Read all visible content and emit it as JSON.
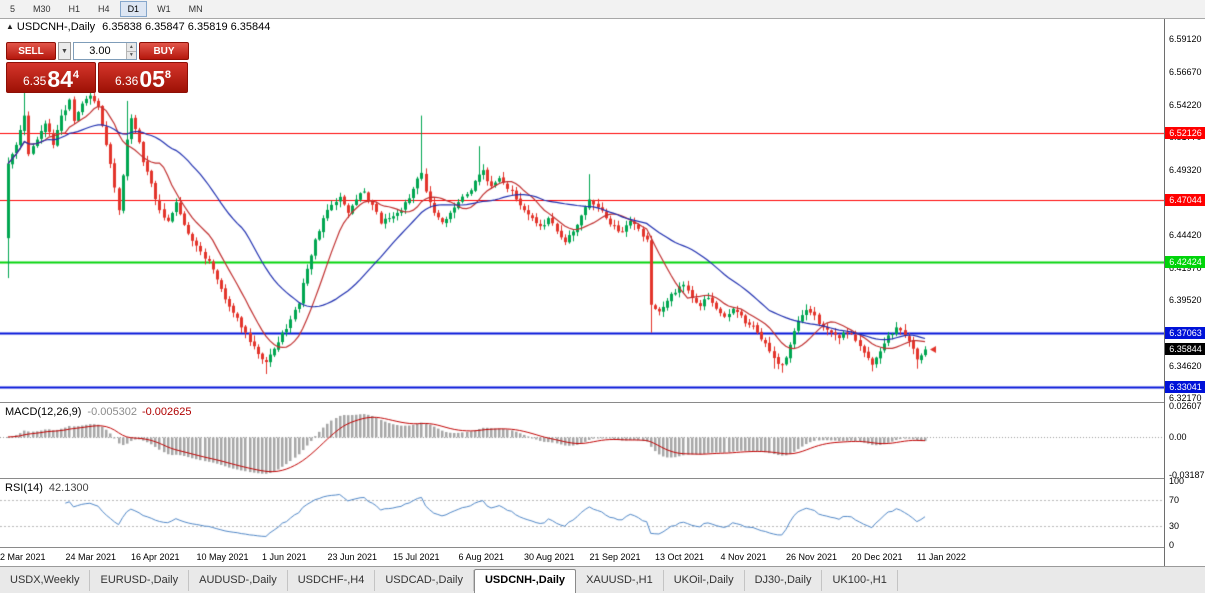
{
  "toolbar": {
    "timeframes": [
      "5",
      "M30",
      "H1",
      "H4",
      "D1",
      "W1",
      "MN"
    ],
    "active": "D1"
  },
  "symbol_line": {
    "toggle_icon": "▲",
    "title": "USDCNH-,Daily",
    "ohlc": "6.35838 6.35847 6.35819 6.35844"
  },
  "one_click": {
    "sell_label": "SELL",
    "buy_label": "BUY",
    "volume": "3.00",
    "dropdown_icon": "▼",
    "spin_up_icon": "▲",
    "spin_down_icon": "▼",
    "sell_price": {
      "prefix": "6.35",
      "big": "84",
      "sup": "4"
    },
    "buy_price": {
      "prefix": "6.36",
      "big": "05",
      "sup": "8"
    }
  },
  "chart_data": {
    "type": "candlestick",
    "title": "USDCNH-,Daily",
    "bars": 225,
    "first_open": 6.442,
    "x_labels": [
      "2 Mar 2021",
      "24 Mar 2021",
      "16 Apr 2021",
      "10 May 2021",
      "1 Jun 2021",
      "23 Jun 2021",
      "15 Jul 2021",
      "6 Aug 2021",
      "30 Aug 2021",
      "21 Sep 2021",
      "13 Oct 2021",
      "4 Nov 2021",
      "26 Nov 2021",
      "20 Dec 2021",
      "11 Jan 2022"
    ],
    "x_label_step": 16,
    "y_axis": {
      "min": 6.319,
      "max": 6.6065,
      "ticks": [
        "6.59120",
        "6.56670",
        "6.54220",
        "6.51770",
        "6.49320",
        "6.46870",
        "6.44420",
        "6.41970",
        "6.39520",
        "6.37070",
        "6.34620",
        "6.32170"
      ]
    },
    "levels": [
      {
        "value": 6.52126,
        "label": "6.52126",
        "color": "#FF0000",
        "width": 1
      },
      {
        "value": 6.47044,
        "label": "6.47044",
        "color": "#FF0000",
        "width": 1
      },
      {
        "value": 6.42424,
        "label": "6.42424",
        "color": "#00D40A",
        "width": 2
      },
      {
        "value": 6.37063,
        "label": "6.37063",
        "color": "#0012D8",
        "width": 2
      },
      {
        "value": 6.33041,
        "label": "6.33041",
        "color": "#0012D8",
        "width": 2
      }
    ],
    "current_price": {
      "value": 6.35844,
      "label": "6.35844",
      "bg": "#000000",
      "marker_color": "#E3342B"
    },
    "candle_colors": {
      "up": "#00A651",
      "down": "#E3342B"
    },
    "moving_averages": [
      {
        "period": 10,
        "color": "#C03030"
      },
      {
        "period": 30,
        "color": "#2030B0"
      }
    ],
    "volatility": {
      "seed": 11,
      "noise": 0.0025,
      "wick": 0.004
    },
    "anchors": [
      [
        0,
        6.498
      ],
      [
        2,
        6.512
      ],
      [
        4,
        6.534
      ],
      [
        5,
        6.505
      ],
      [
        7,
        6.516
      ],
      [
        9,
        6.528
      ],
      [
        11,
        6.512
      ],
      [
        13,
        6.534
      ],
      [
        15,
        6.546
      ],
      [
        16,
        6.53
      ],
      [
        18,
        6.543
      ],
      [
        20,
        6.549
      ],
      [
        22,
        6.541
      ],
      [
        24,
        6.512
      ],
      [
        26,
        6.48
      ],
      [
        27,
        6.463
      ],
      [
        29,
        6.516
      ],
      [
        30,
        6.532
      ],
      [
        32,
        6.514
      ],
      [
        33,
        6.499
      ],
      [
        35,
        6.483
      ],
      [
        37,
        6.463
      ],
      [
        39,
        6.455
      ],
      [
        41,
        6.469
      ],
      [
        43,
        6.452
      ],
      [
        45,
        6.44
      ],
      [
        47,
        6.432
      ],
      [
        49,
        6.425
      ],
      [
        51,
        6.411
      ],
      [
        53,
        6.396
      ],
      [
        55,
        6.386
      ],
      [
        57,
        6.375
      ],
      [
        59,
        6.364
      ],
      [
        61,
        6.355
      ],
      [
        63,
        6.349
      ],
      [
        65,
        6.359
      ],
      [
        67,
        6.371
      ],
      [
        69,
        6.381
      ],
      [
        71,
        6.393
      ],
      [
        73,
        6.419
      ],
      [
        75,
        6.441
      ],
      [
        77,
        6.457
      ],
      [
        79,
        6.467
      ],
      [
        81,
        6.473
      ],
      [
        83,
        6.461
      ],
      [
        85,
        6.471
      ],
      [
        87,
        6.477
      ],
      [
        89,
        6.467
      ],
      [
        91,
        6.453
      ],
      [
        93,
        6.457
      ],
      [
        95,
        6.461
      ],
      [
        97,
        6.469
      ],
      [
        99,
        6.479
      ],
      [
        101,
        6.491
      ],
      [
        102,
        6.477
      ],
      [
        104,
        6.461
      ],
      [
        106,
        6.454
      ],
      [
        108,
        6.461
      ],
      [
        110,
        6.469
      ],
      [
        112,
        6.475
      ],
      [
        114,
        6.485
      ],
      [
        116,
        6.493
      ],
      [
        118,
        6.481
      ],
      [
        120,
        6.487
      ],
      [
        122,
        6.479
      ],
      [
        124,
        6.471
      ],
      [
        126,
        6.463
      ],
      [
        128,
        6.457
      ],
      [
        130,
        6.451
      ],
      [
        132,
        6.457
      ],
      [
        134,
        6.447
      ],
      [
        136,
        6.439
      ],
      [
        138,
        6.447
      ],
      [
        140,
        6.459
      ],
      [
        142,
        6.471
      ],
      [
        144,
        6.465
      ],
      [
        146,
        6.457
      ],
      [
        148,
        6.451
      ],
      [
        150,
        6.447
      ],
      [
        152,
        6.455
      ],
      [
        154,
        6.449
      ],
      [
        156,
        6.441
      ],
      [
        157,
        6.392
      ],
      [
        159,
        6.387
      ],
      [
        161,
        6.395
      ],
      [
        163,
        6.401
      ],
      [
        165,
        6.407
      ],
      [
        167,
        6.397
      ],
      [
        169,
        6.391
      ],
      [
        171,
        6.397
      ],
      [
        173,
        6.389
      ],
      [
        175,
        6.383
      ],
      [
        177,
        6.389
      ],
      [
        179,
        6.384
      ],
      [
        181,
        6.377
      ],
      [
        183,
        6.371
      ],
      [
        185,
        6.363
      ],
      [
        187,
        6.352
      ],
      [
        189,
        6.347
      ],
      [
        191,
        6.362
      ],
      [
        193,
        6.38
      ],
      [
        195,
        6.388
      ],
      [
        197,
        6.384
      ],
      [
        199,
        6.375
      ],
      [
        201,
        6.371
      ],
      [
        203,
        6.367
      ],
      [
        205,
        6.371
      ],
      [
        207,
        6.365
      ],
      [
        209,
        6.356
      ],
      [
        211,
        6.347
      ],
      [
        213,
        6.357
      ],
      [
        215,
        6.369
      ],
      [
        217,
        6.375
      ],
      [
        219,
        6.369
      ],
      [
        221,
        6.359
      ],
      [
        222,
        6.351
      ],
      [
        223,
        6.354
      ],
      [
        224,
        6.35844
      ]
    ],
    "spikes": [
      {
        "i": 0,
        "l": 6.412
      },
      {
        "i": 4,
        "h": 6.552
      },
      {
        "i": 20,
        "h": 6.558
      },
      {
        "i": 29,
        "h": 6.545
      },
      {
        "i": 63,
        "l": 6.34
      },
      {
        "i": 101,
        "h": 6.534
      },
      {
        "i": 115,
        "h": 6.511
      },
      {
        "i": 142,
        "h": 6.49
      },
      {
        "i": 157,
        "l": 6.371
      },
      {
        "i": 187,
        "l": 6.344
      },
      {
        "i": 189,
        "l": 6.341
      },
      {
        "i": 211,
        "l": 6.342
      },
      {
        "i": 222,
        "l": 6.344
      }
    ],
    "indicators": {
      "macd": {
        "label": "MACD(12,26,9)",
        "value_main": "-0.005302",
        "value_signal": "-0.002625",
        "fast": 12,
        "slow": 26,
        "signal": 9,
        "range": [
          -0.0345,
          0.0285
        ],
        "ticks": [
          {
            "label": "0.02607",
            "value": 0.02607
          },
          {
            "label": "0.00",
            "value": 0
          },
          {
            "label": "-0.03187",
            "value": -0.03187
          }
        ],
        "hist_color": "#A6A6A6",
        "signal_color": "#C00000"
      },
      "rsi": {
        "label": "RSI(14)",
        "value": "42.1300",
        "period": 14,
        "levels": [
          70,
          30
        ],
        "ticks": [
          {
            "label": "100",
            "value": 100
          },
          {
            "label": "70",
            "value": 70
          },
          {
            "label": "30",
            "value": 30
          },
          {
            "label": "0",
            "value": 0
          }
        ],
        "color": "#4F86C6"
      }
    }
  },
  "tabs": {
    "active_index": 5,
    "items": [
      "USDX,Weekly",
      "EURUSD-,Daily",
      "AUDUSD-,Daily",
      "USDCHF-,H4",
      "USDCAD-,Daily",
      "USDCNH-,Daily",
      "XAUUSD-,H1",
      "UKOil-,Daily",
      "DJ30-,Daily",
      "UK100-,H1"
    ]
  }
}
